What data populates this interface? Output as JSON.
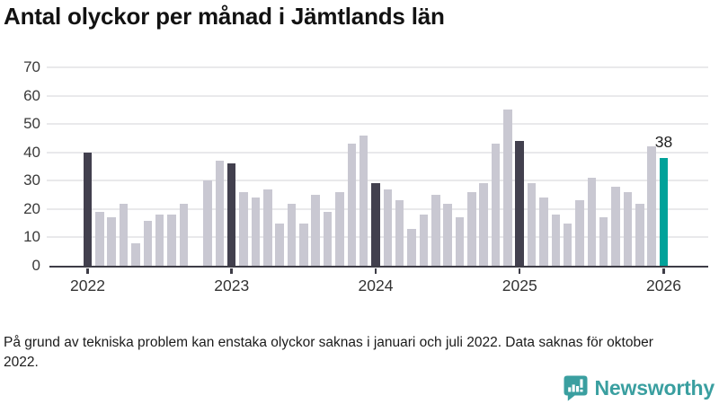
{
  "chart_data": {
    "type": "bar",
    "title": "Antal olyckor per månad i Jämtlands län",
    "xlabel": "",
    "ylabel": "",
    "ylim": [
      0,
      70
    ],
    "yticks": [
      0,
      10,
      20,
      30,
      40,
      50,
      60,
      70
    ],
    "grid": true,
    "x": [
      "2022-01",
      "2022-02",
      "2022-03",
      "2022-04",
      "2022-05",
      "2022-06",
      "2022-07",
      "2022-08",
      "2022-09",
      "2022-10",
      "2022-11",
      "2022-12",
      "2023-01",
      "2023-02",
      "2023-03",
      "2023-04",
      "2023-05",
      "2023-06",
      "2023-07",
      "2023-08",
      "2023-09",
      "2023-10",
      "2023-11",
      "2023-12",
      "2024-01",
      "2024-02",
      "2024-03",
      "2024-04",
      "2024-05",
      "2024-06",
      "2024-07",
      "2024-08",
      "2024-09",
      "2024-10",
      "2024-11",
      "2024-12",
      "2025-01",
      "2025-02",
      "2025-03",
      "2025-04",
      "2025-05",
      "2025-06",
      "2025-07",
      "2025-08",
      "2025-09",
      "2025-10",
      "2025-11",
      "2025-12",
      "2026-01"
    ],
    "values": [
      40,
      19,
      17,
      22,
      8,
      16,
      18,
      18,
      22,
      null,
      30,
      37,
      36,
      26,
      24,
      27,
      15,
      22,
      15,
      25,
      19,
      26,
      43,
      46,
      29,
      27,
      23,
      13,
      18,
      25,
      22,
      17,
      26,
      29,
      43,
      55,
      44,
      29,
      24,
      18,
      15,
      23,
      31,
      17,
      28,
      26,
      22,
      42,
      38
    ],
    "missing_months": [
      "2022-10"
    ],
    "xticks": [
      {
        "label": "2022",
        "index": 0
      },
      {
        "label": "2023",
        "index": 12
      },
      {
        "label": "2024",
        "index": 24
      },
      {
        "label": "2025",
        "index": 36
      },
      {
        "label": "2026",
        "index": 48
      }
    ],
    "highlight": {
      "january_indices": [
        0,
        12,
        24,
        36
      ],
      "latest_index": 48
    },
    "annotation": {
      "index": 48,
      "text": "38"
    },
    "colors": {
      "bar": "#c9c8d2",
      "january": "#42404e",
      "latest": "#00a29a",
      "grid": "#e9e9eb",
      "axis": "#3d3c46"
    }
  },
  "footer": {
    "note": "På grund av tekniska problem kan enstaka olyckor saknas i januari och juli 2022. Data saknas för oktober 2022."
  },
  "branding": {
    "name": "Newsworthy",
    "logo_color": "#3a9fa0",
    "logo_icon": "bar-chart-speech-bubble-icon"
  }
}
